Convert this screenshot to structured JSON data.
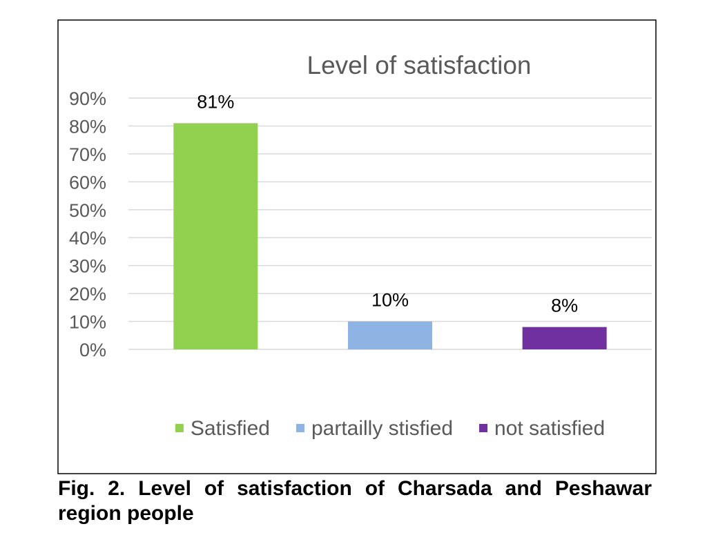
{
  "chart_data": {
    "type": "bar",
    "title": "Level of satisfaction",
    "categories": [
      "Satisfied",
      "partailly stisfied",
      "not satisfied"
    ],
    "values": [
      81,
      10,
      8
    ],
    "value_labels": [
      "81%",
      "10%",
      "8%"
    ],
    "colors": [
      "#92d050",
      "#8eb4e3",
      "#7030a0"
    ],
    "ylim": [
      0,
      90
    ],
    "yticks": [
      0,
      10,
      20,
      30,
      40,
      50,
      60,
      70,
      80,
      90
    ],
    "ytick_labels": [
      "0%",
      "10%",
      "20%",
      "30%",
      "40%",
      "50%",
      "60%",
      "70%",
      "80%",
      "90%"
    ],
    "xlabel": "",
    "ylabel": "",
    "grid": true,
    "legend": "bottom"
  },
  "caption": "Fig. 2. Level of satisfaction of Charsada and Peshawar region people"
}
